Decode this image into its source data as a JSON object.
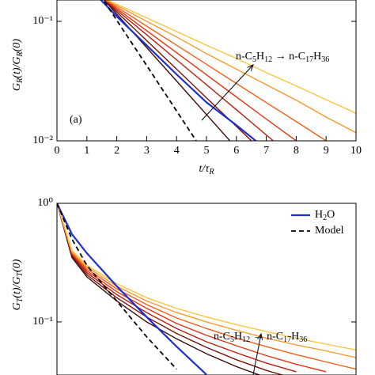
{
  "chart_data": [
    {
      "type": "line",
      "log_y": true,
      "annotation": "(a)",
      "arrow_label": [
        "n-C",
        "5",
        "H",
        "12",
        " → n-C",
        "17",
        "H",
        "36"
      ],
      "xlabel": [
        "t/τ",
        "R"
      ],
      "ylabel": [
        "G",
        "R",
        "(t)/G",
        "R",
        "(0)"
      ],
      "x": [
        1,
        2,
        3,
        4,
        5,
        6,
        7,
        8,
        9,
        10
      ],
      "xlim": [
        0,
        10
      ],
      "xticks": [
        0,
        1,
        2,
        3,
        4,
        5,
        6,
        7,
        8,
        9,
        10
      ],
      "ylim": [
        0.01,
        0.151
      ],
      "yticks": [
        {
          "value": 0.1,
          "label": "10⁻¹"
        },
        {
          "value": 0.01,
          "label": "10⁻²"
        }
      ],
      "series": [
        {
          "color": "#3d0a05",
          "values": [
            0.219,
            0.115,
            0.0603,
            0.0317,
            0.0166,
            0.0087,
            null,
            null,
            null,
            null
          ]
        },
        {
          "color": "#7a1208",
          "values": [
            0.209,
            0.12,
            0.0692,
            0.0398,
            0.0229,
            0.0132,
            0.0076,
            null,
            null,
            null
          ]
        },
        {
          "color": "#b81c0c",
          "values": [
            0.202,
            0.124,
            0.0773,
            0.0477,
            0.0295,
            0.0182,
            0.0112,
            0.0069,
            null,
            null
          ]
        },
        {
          "color": "#e0330f",
          "values": [
            0.195,
            0.128,
            0.0835,
            0.0547,
            0.0357,
            0.0233,
            0.0152,
            0.01,
            0.0065,
            null
          ]
        },
        {
          "color": "#f0601a",
          "values": [
            0.19,
            0.132,
            0.0912,
            0.0631,
            0.0437,
            0.0302,
            0.0209,
            0.0145,
            0.01,
            0.0069
          ]
        },
        {
          "color": "#f79a2a",
          "values": [
            0.185,
            0.136,
            0.1,
            0.0741,
            0.0537,
            0.0398,
            0.0295,
            0.0219,
            0.0158,
            0.0117
          ]
        },
        {
          "color": "#fcc540",
          "values": [
            0.18,
            0.139,
            0.107,
            0.0822,
            0.0631,
            0.049,
            0.0372,
            0.0288,
            0.0221,
            0.017
          ]
        },
        {
          "color": "#1f2fd0",
          "width": 2.2,
          "values": [
            0.2,
            0.11,
            0.063,
            0.036,
            0.021,
            0.0135,
            0.0085,
            null,
            null,
            null
          ]
        },
        {
          "color": "#000000",
          "dashed": true,
          "width": 1.8,
          "values": [
            0.245,
            0.102,
            0.0427,
            0.0178,
            0.0074,
            null,
            null,
            null,
            null,
            null
          ]
        }
      ]
    },
    {
      "type": "line",
      "log_y": true,
      "arrow_label": [
        "n-C",
        "5",
        "H",
        "12",
        " → n-C",
        "17",
        "H",
        "36"
      ],
      "ylabel": [
        "G",
        "T",
        "(t)/G",
        "T",
        "(0)"
      ],
      "x": [
        0,
        0.5,
        1,
        2,
        3,
        4,
        5,
        6,
        7,
        8,
        9,
        10
      ],
      "xlim": [
        0,
        10
      ],
      "ylim": [
        0.0357,
        1
      ],
      "yticks": [
        {
          "value": 1,
          "label": "10⁰"
        },
        {
          "value": 0.1,
          "label": "10⁻¹"
        }
      ],
      "legend": "upper right",
      "series": [
        {
          "color": "#3d0a05",
          "values": [
            1,
            0.35,
            0.24,
            0.15,
            0.1,
            0.072,
            0.054,
            0.042,
            0.034,
            null,
            null,
            null
          ]
        },
        {
          "color": "#7a1208",
          "values": [
            1,
            0.36,
            0.25,
            0.16,
            0.11,
            0.08,
            0.061,
            0.048,
            0.039,
            0.033,
            null,
            null
          ]
        },
        {
          "color": "#b81c0c",
          "values": [
            1,
            0.37,
            0.26,
            0.17,
            0.12,
            0.088,
            0.068,
            0.055,
            0.045,
            0.038,
            null,
            null
          ]
        },
        {
          "color": "#e0330f",
          "values": [
            1,
            0.38,
            0.27,
            0.18,
            0.13,
            0.097,
            0.077,
            0.063,
            0.052,
            0.044,
            0.038,
            null
          ]
        },
        {
          "color": "#f0601a",
          "values": [
            1,
            0.38,
            0.28,
            0.19,
            0.14,
            0.108,
            0.088,
            0.073,
            0.062,
            0.053,
            0.046,
            0.04
          ]
        },
        {
          "color": "#f79a2a",
          "values": [
            1,
            0.39,
            0.29,
            0.2,
            0.15,
            0.12,
            0.1,
            0.085,
            0.073,
            0.064,
            0.057,
            0.05
          ]
        },
        {
          "color": "#fcc540",
          "values": [
            1,
            0.4,
            0.3,
            0.21,
            0.16,
            0.13,
            0.11,
            0.095,
            0.083,
            0.073,
            0.065,
            0.058
          ]
        },
        {
          "name": [
            "H",
            "2",
            "O"
          ],
          "color": "#1f2fd0",
          "width": 2.2,
          "values": [
            1,
            0.55,
            0.38,
            0.2,
            0.11,
            0.062,
            0.036,
            null,
            null,
            null,
            null,
            null
          ]
        },
        {
          "name": [
            "Model"
          ],
          "color": "#000000",
          "dashed": true,
          "width": 1.8,
          "values": [
            1,
            0.5,
            0.3,
            0.15,
            0.075,
            0.04,
            null,
            null,
            null,
            null,
            null,
            null
          ]
        }
      ]
    }
  ]
}
